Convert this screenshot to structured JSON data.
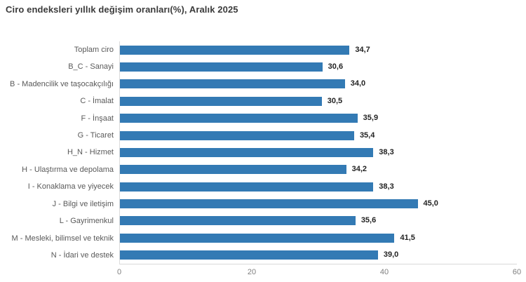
{
  "title": "Ciro endeksleri yıllık değişim oranları(%), Aralık 2025",
  "colors": {
    "bar": "#337ab4",
    "axis_line": "#d9d9d9",
    "title_text": "#3a3a3a",
    "category_label": "#595959",
    "value_label": "#222222",
    "tick_label": "#7f7f7f",
    "background": "#ffffff"
  },
  "chart_data": {
    "type": "bar",
    "orientation": "horizontal",
    "title": "Ciro endeksleri yıllık değişim oranları(%), Aralık 2025",
    "categories": [
      "Toplam ciro",
      "B_C - Sanayi",
      "B - Madencilik ve taşocakçılığı",
      "C - İmalat",
      "F - İnşaat",
      "G - Ticaret",
      "H_N - Hizmet",
      "H - Ulaştırma ve depolama",
      "I - Konaklama ve yiyecek",
      "J - Bilgi ve iletişim",
      "L - Gayrimenkul",
      "M - Mesleki, bilimsel ve teknik",
      "N - İdari ve destek"
    ],
    "values": [
      34.7,
      30.6,
      34.0,
      30.5,
      35.9,
      35.4,
      38.3,
      34.2,
      38.3,
      45.0,
      35.6,
      41.5,
      39.0
    ],
    "value_labels": [
      "34,7",
      "30,6",
      "34,0",
      "30,5",
      "35,9",
      "35,4",
      "38,3",
      "34,2",
      "38,3",
      "45,0",
      "35,6",
      "41,5",
      "39,0"
    ],
    "xlabel": "",
    "ylabel": "",
    "xlim": [
      0,
      60
    ],
    "xticks": [
      0,
      20,
      40,
      60
    ],
    "xtick_labels": [
      "0",
      "20",
      "40",
      "60"
    ],
    "grid": false,
    "legend": false
  }
}
